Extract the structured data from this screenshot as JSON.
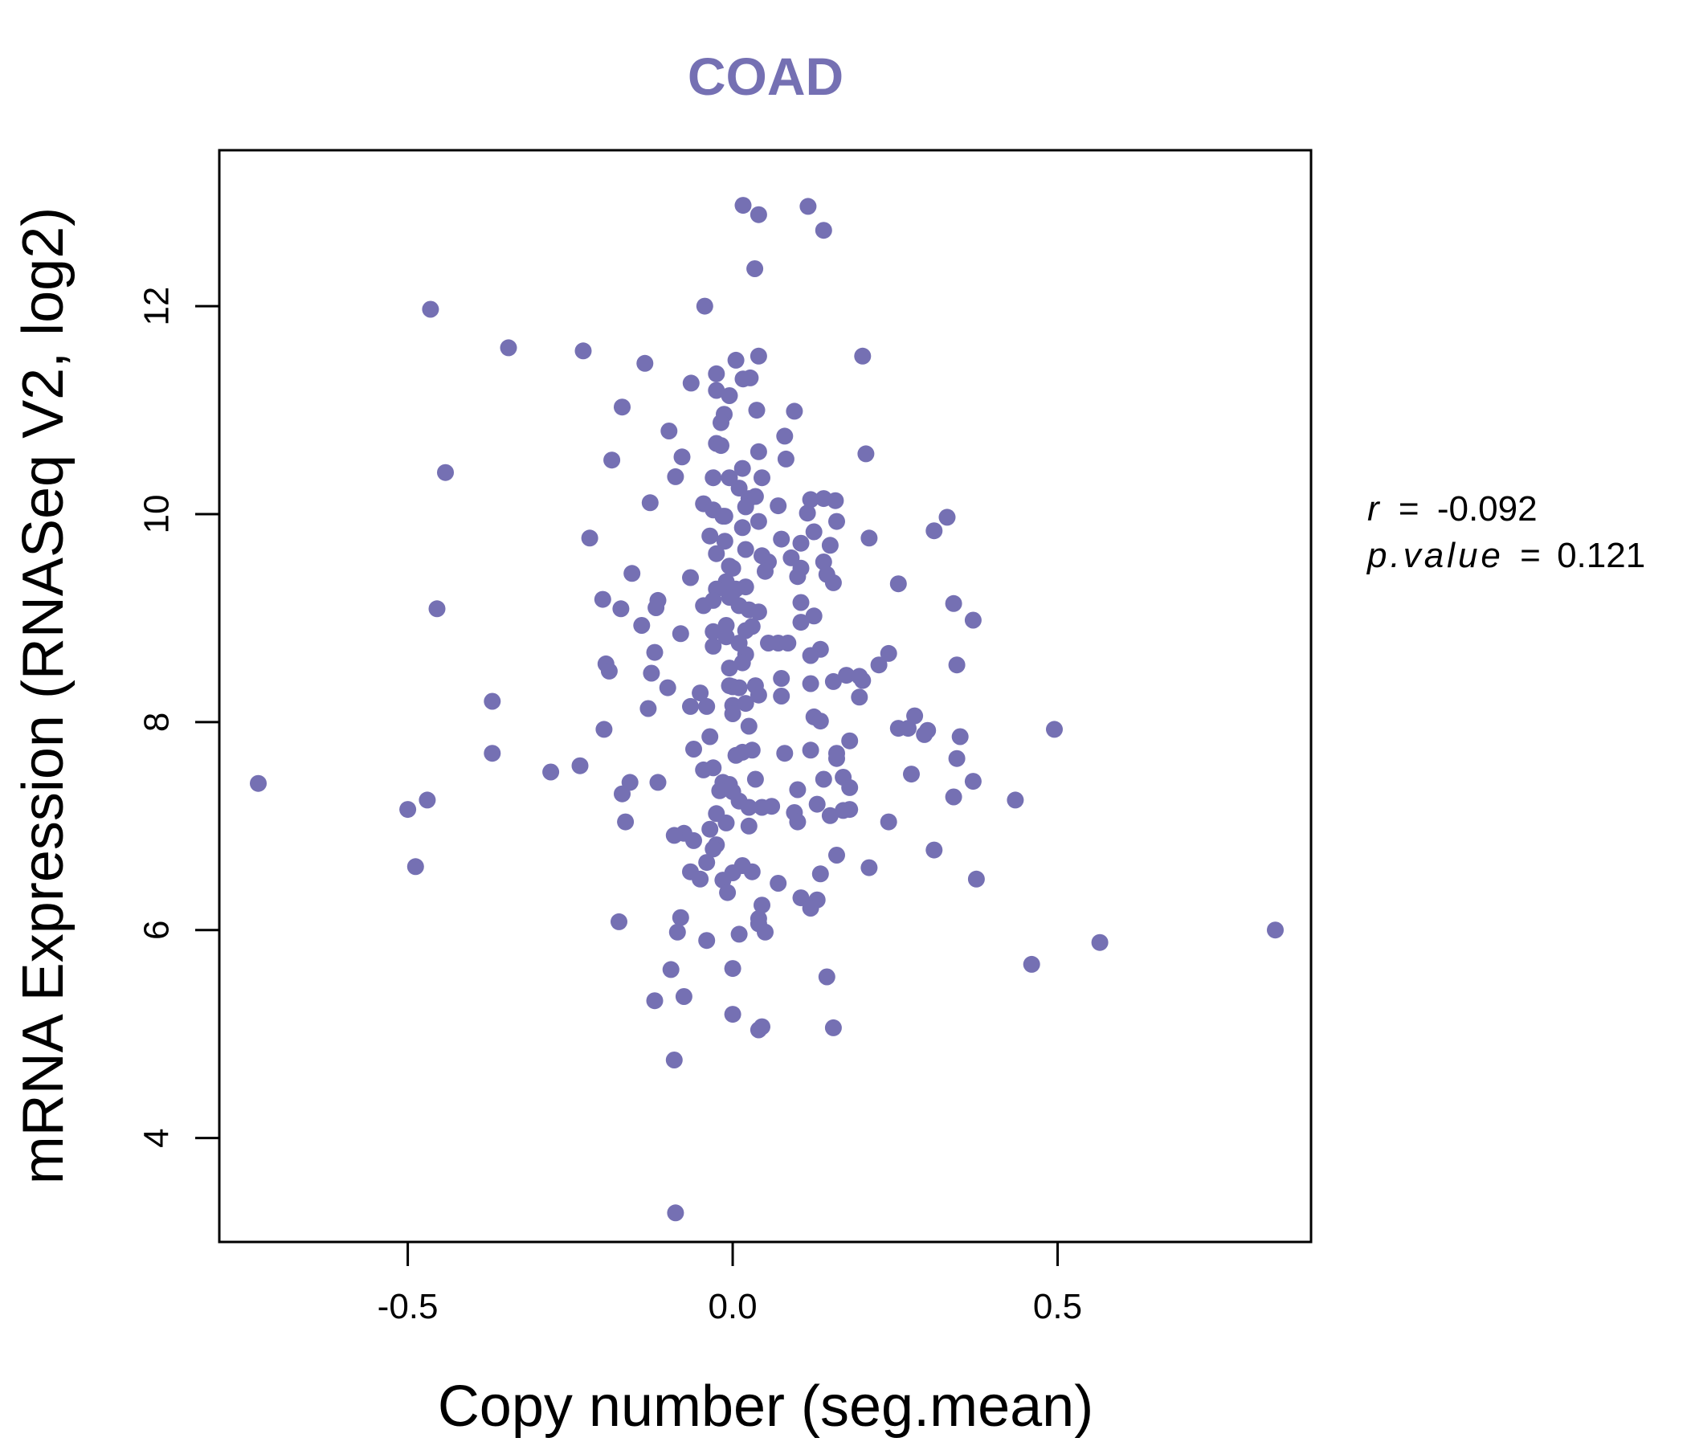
{
  "chart_data": {
    "type": "scatter",
    "title": "COAD",
    "xlabel": "Copy number (seg.mean)",
    "ylabel": "mRNA Expression (RNASeq V2, log2)",
    "xlim": [
      -0.79,
      0.89
    ],
    "ylim": [
      3.0,
      13.5
    ],
    "xticks": [
      -0.5,
      0.0,
      0.5
    ],
    "xtick_labels": [
      "-0.5",
      "0.0",
      "0.5"
    ],
    "yticks": [
      4,
      6,
      8,
      10,
      12
    ],
    "ytick_labels": [
      "4",
      "6",
      "8",
      "10",
      "12"
    ],
    "grid": false,
    "color": "#7570b3",
    "annotation": {
      "r_label": "r",
      "r_value": "-0.092",
      "p_label": "p.value",
      "p_value": "0.121",
      "equals": "="
    },
    "points": [
      [
        0.016,
        12.97
      ],
      [
        0.04,
        12.88
      ],
      [
        0.116,
        12.96
      ],
      [
        0.14,
        12.73
      ],
      [
        0.034,
        12.36
      ],
      [
        -0.043,
        12.0
      ],
      [
        -0.465,
        11.97
      ],
      [
        -0.345,
        11.6
      ],
      [
        -0.23,
        11.57
      ],
      [
        -0.135,
        11.45
      ],
      [
        0.2,
        11.52
      ],
      [
        0.04,
        11.52
      ],
      [
        -0.025,
        11.35
      ],
      [
        0.005,
        11.48
      ],
      [
        0.016,
        11.3
      ],
      [
        0.027,
        11.31
      ],
      [
        -0.064,
        11.26
      ],
      [
        -0.025,
        11.19
      ],
      [
        -0.005,
        11.14
      ],
      [
        -0.17,
        11.03
      ],
      [
        0.037,
        11.0
      ],
      [
        0.095,
        10.99
      ],
      [
        -0.013,
        10.96
      ],
      [
        -0.018,
        10.88
      ],
      [
        -0.098,
        10.8
      ],
      [
        0.08,
        10.75
      ],
      [
        -0.025,
        10.68
      ],
      [
        -0.018,
        10.66
      ],
      [
        0.04,
        10.6
      ],
      [
        0.205,
        10.58
      ],
      [
        -0.078,
        10.55
      ],
      [
        -0.186,
        10.52
      ],
      [
        0.082,
        10.53
      ],
      [
        -0.442,
        10.4
      ],
      [
        0.015,
        10.44
      ],
      [
        -0.03,
        10.35
      ],
      [
        -0.005,
        10.35
      ],
      [
        -0.088,
        10.36
      ],
      [
        0.045,
        10.35
      ],
      [
        0.01,
        10.25
      ],
      [
        0.025,
        10.15
      ],
      [
        0.035,
        10.17
      ],
      [
        0.12,
        10.14
      ],
      [
        0.14,
        10.15
      ],
      [
        0.158,
        10.13
      ],
      [
        0.07,
        10.08
      ],
      [
        -0.127,
        10.11
      ],
      [
        -0.045,
        10.1
      ],
      [
        0.02,
        10.07
      ],
      [
        0.115,
        10.01
      ],
      [
        -0.03,
        10.04
      ],
      [
        -0.015,
        9.98
      ],
      [
        -0.012,
        9.98
      ],
      [
        0.04,
        9.93
      ],
      [
        0.16,
        9.93
      ],
      [
        0.015,
        9.87
      ],
      [
        0.31,
        9.84
      ],
      [
        0.33,
        9.97
      ],
      [
        0.125,
        9.83
      ],
      [
        -0.035,
        9.79
      ],
      [
        -0.22,
        9.77
      ],
      [
        0.21,
        9.77
      ],
      [
        0.075,
        9.76
      ],
      [
        -0.012,
        9.74
      ],
      [
        0.105,
        9.72
      ],
      [
        0.15,
        9.7
      ],
      [
        0.02,
        9.66
      ],
      [
        -0.025,
        9.62
      ],
      [
        0.045,
        9.6
      ],
      [
        0.09,
        9.58
      ],
      [
        0.055,
        9.54
      ],
      [
        0.14,
        9.54
      ],
      [
        -0.005,
        9.5
      ],
      [
        0.0,
        9.48
      ],
      [
        0.105,
        9.48
      ],
      [
        0.05,
        9.45
      ],
      [
        0.145,
        9.42
      ],
      [
        -0.155,
        9.43
      ],
      [
        -0.065,
        9.39
      ],
      [
        0.1,
        9.4
      ],
      [
        0.255,
        9.33
      ],
      [
        0.155,
        9.34
      ],
      [
        -0.01,
        9.35
      ],
      [
        0.02,
        9.3
      ],
      [
        0.005,
        9.28
      ],
      [
        -0.025,
        9.28
      ],
      [
        0.0,
        9.25
      ],
      [
        -0.005,
        9.2
      ],
      [
        -0.2,
        9.18
      ],
      [
        -0.115,
        9.17
      ],
      [
        -0.03,
        9.17
      ],
      [
        0.105,
        9.15
      ],
      [
        -0.045,
        9.12
      ],
      [
        0.34,
        9.14
      ],
      [
        -0.172,
        9.09
      ],
      [
        -0.118,
        9.1
      ],
      [
        0.01,
        9.12
      ],
      [
        0.025,
        9.08
      ],
      [
        0.04,
        9.06
      ],
      [
        -0.455,
        9.09
      ],
      [
        0.125,
        9.02
      ],
      [
        0.37,
        8.98
      ],
      [
        0.105,
        8.96
      ],
      [
        -0.01,
        8.93
      ],
      [
        0.03,
        8.92
      ],
      [
        -0.14,
        8.93
      ],
      [
        0.02,
        8.88
      ],
      [
        -0.03,
        8.87
      ],
      [
        -0.08,
        8.85
      ],
      [
        -0.01,
        8.82
      ],
      [
        0.01,
        8.76
      ],
      [
        0.055,
        8.76
      ],
      [
        0.07,
        8.76
      ],
      [
        0.085,
        8.76
      ],
      [
        -0.03,
        8.73
      ],
      [
        0.135,
        8.7
      ],
      [
        -0.12,
        8.67
      ],
      [
        0.02,
        8.65
      ],
      [
        0.24,
        8.66
      ],
      [
        0.12,
        8.64
      ],
      [
        0.015,
        8.57
      ],
      [
        0.225,
        8.55
      ],
      [
        0.345,
        8.55
      ],
      [
        -0.195,
        8.56
      ],
      [
        -0.005,
        8.52
      ],
      [
        -0.19,
        8.49
      ],
      [
        -0.125,
        8.47
      ],
      [
        0.175,
        8.45
      ],
      [
        0.195,
        8.44
      ],
      [
        0.075,
        8.42
      ],
      [
        0.2,
        8.4
      ],
      [
        0.155,
        8.39
      ],
      [
        0.12,
        8.37
      ],
      [
        -0.005,
        8.35
      ],
      [
        0.0,
        8.34
      ],
      [
        0.01,
        8.33
      ],
      [
        0.035,
        8.35
      ],
      [
        -0.1,
        8.33
      ],
      [
        -0.05,
        8.28
      ],
      [
        0.04,
        8.26
      ],
      [
        0.075,
        8.25
      ],
      [
        0.195,
        8.24
      ],
      [
        -0.37,
        8.2
      ],
      [
        -0.065,
        8.15
      ],
      [
        0.0,
        8.16
      ],
      [
        0.02,
        8.18
      ],
      [
        -0.04,
        8.15
      ],
      [
        -0.13,
        8.13
      ],
      [
        0.0,
        8.08
      ],
      [
        0.125,
        8.05
      ],
      [
        0.28,
        8.06
      ],
      [
        0.135,
        8.01
      ],
      [
        0.025,
        7.96
      ],
      [
        0.255,
        7.94
      ],
      [
        0.27,
        7.94
      ],
      [
        0.3,
        7.92
      ],
      [
        0.495,
        7.93
      ],
      [
        -0.198,
        7.93
      ],
      [
        0.295,
        7.88
      ],
      [
        0.35,
        7.86
      ],
      [
        -0.035,
        7.86
      ],
      [
        0.18,
        7.82
      ],
      [
        -0.06,
        7.74
      ],
      [
        0.12,
        7.73
      ],
      [
        0.03,
        7.73
      ],
      [
        0.015,
        7.71
      ],
      [
        0.005,
        7.68
      ],
      [
        0.08,
        7.7
      ],
      [
        0.16,
        7.7
      ],
      [
        0.16,
        7.65
      ],
      [
        0.345,
        7.65
      ],
      [
        -0.235,
        7.58
      ],
      [
        -0.28,
        7.52
      ],
      [
        -0.37,
        7.7
      ],
      [
        -0.03,
        7.56
      ],
      [
        -0.045,
        7.54
      ],
      [
        0.275,
        7.5
      ],
      [
        0.17,
        7.47
      ],
      [
        0.14,
        7.45
      ],
      [
        0.035,
        7.45
      ],
      [
        -0.158,
        7.42
      ],
      [
        -0.115,
        7.42
      ],
      [
        -0.015,
        7.42
      ],
      [
        -0.005,
        7.4
      ],
      [
        0.37,
        7.43
      ],
      [
        -0.73,
        7.41
      ],
      [
        0.18,
        7.37
      ],
      [
        0.1,
        7.35
      ],
      [
        -0.02,
        7.34
      ],
      [
        0.0,
        7.33
      ],
      [
        -0.17,
        7.31
      ],
      [
        0.34,
        7.28
      ],
      [
        0.435,
        7.25
      ],
      [
        -0.47,
        7.25
      ],
      [
        0.01,
        7.24
      ],
      [
        0.13,
        7.21
      ],
      [
        0.06,
        7.19
      ],
      [
        0.045,
        7.18
      ],
      [
        0.025,
        7.18
      ],
      [
        0.18,
        7.16
      ],
      [
        0.17,
        7.15
      ],
      [
        -0.5,
        7.16
      ],
      [
        0.095,
        7.13
      ],
      [
        -0.025,
        7.12
      ],
      [
        0.15,
        7.1
      ],
      [
        0.1,
        7.04
      ],
      [
        0.24,
        7.04
      ],
      [
        -0.165,
        7.04
      ],
      [
        -0.01,
        7.03
      ],
      [
        0.025,
        7.0
      ],
      [
        -0.035,
        6.97
      ],
      [
        -0.075,
        6.93
      ],
      [
        -0.09,
        6.91
      ],
      [
        -0.06,
        6.86
      ],
      [
        -0.025,
        6.82
      ],
      [
        -0.03,
        6.78
      ],
      [
        0.31,
        6.77
      ],
      [
        0.16,
        6.72
      ],
      [
        -0.04,
        6.65
      ],
      [
        0.015,
        6.62
      ],
      [
        0.21,
        6.6
      ],
      [
        -0.488,
        6.61
      ],
      [
        0.03,
        6.56
      ],
      [
        -0.065,
        6.56
      ],
      [
        0.0,
        6.55
      ],
      [
        0.135,
        6.54
      ],
      [
        -0.05,
        6.49
      ],
      [
        -0.015,
        6.48
      ],
      [
        0.375,
        6.49
      ],
      [
        0.07,
        6.45
      ],
      [
        -0.008,
        6.36
      ],
      [
        0.105,
        6.31
      ],
      [
        0.13,
        6.29
      ],
      [
        0.12,
        6.21
      ],
      [
        0.045,
        6.24
      ],
      [
        -0.08,
        6.12
      ],
      [
        0.04,
        6.11
      ],
      [
        -0.175,
        6.08
      ],
      [
        0.04,
        6.06
      ],
      [
        -0.085,
        5.98
      ],
      [
        0.05,
        5.98
      ],
      [
        0.835,
        6.0
      ],
      [
        0.01,
        5.96
      ],
      [
        -0.04,
        5.9
      ],
      [
        0.565,
        5.88
      ],
      [
        0.46,
        5.67
      ],
      [
        0.0,
        5.63
      ],
      [
        -0.095,
        5.62
      ],
      [
        0.145,
        5.55
      ],
      [
        -0.075,
        5.36
      ],
      [
        -0.12,
        5.32
      ],
      [
        0.0,
        5.19
      ],
      [
        0.045,
        5.07
      ],
      [
        0.04,
        5.04
      ],
      [
        0.155,
        5.06
      ],
      [
        -0.09,
        4.75
      ],
      [
        -0.088,
        3.28
      ]
    ]
  }
}
